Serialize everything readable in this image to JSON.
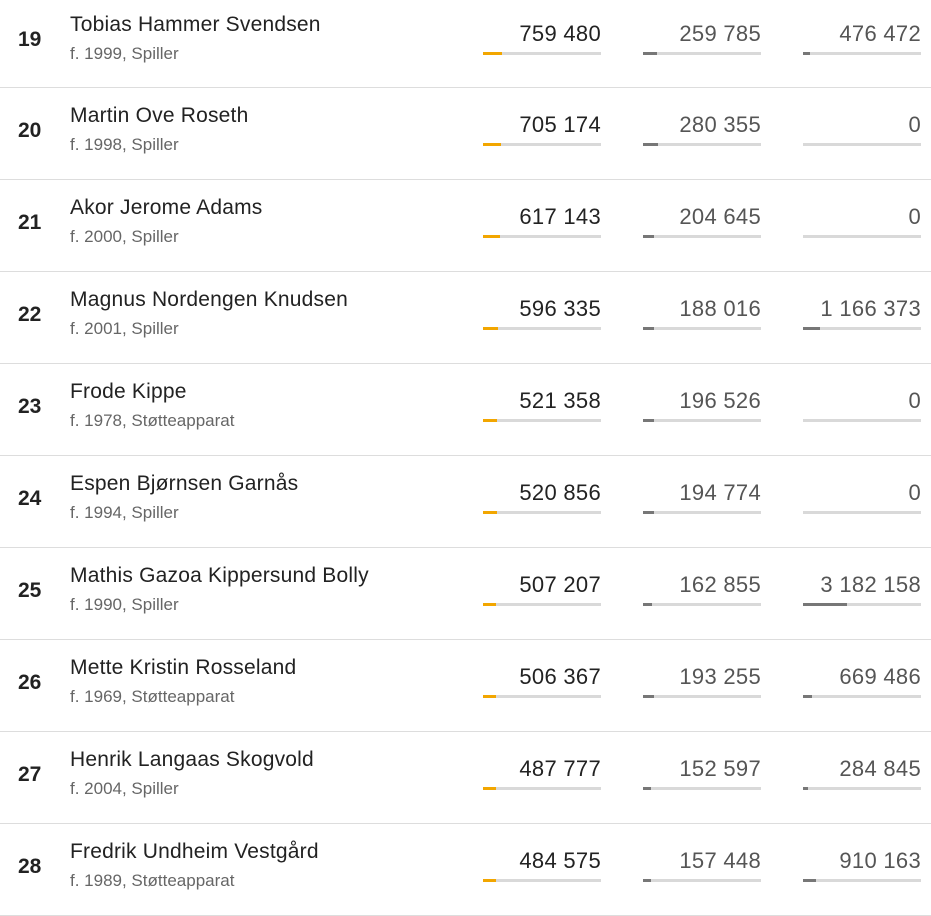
{
  "colors": {
    "accent": "#f2a600",
    "secondary_bar": "#777777",
    "track": "#d9d9d9"
  },
  "rows": [
    {
      "rank": "19",
      "name": "Tobias Hammer Svendsen",
      "sub": "f. 1999, Spiller",
      "v1": "759 480",
      "v2": "259 785",
      "v3": "476 472",
      "p1": 0.16,
      "p2": 0.12,
      "p3": 0.06
    },
    {
      "rank": "20",
      "name": "Martin Ove Roseth",
      "sub": "f. 1998, Spiller",
      "v1": "705 174",
      "v2": "280 355",
      "v3": "0",
      "p1": 0.15,
      "p2": 0.13,
      "p3": 0
    },
    {
      "rank": "21",
      "name": "Akor Jerome Adams",
      "sub": "f. 2000, Spiller",
      "v1": "617 143",
      "v2": "204 645",
      "v3": "0",
      "p1": 0.14,
      "p2": 0.09,
      "p3": 0
    },
    {
      "rank": "22",
      "name": "Magnus Nordengen Knudsen",
      "sub": "f. 2001, Spiller",
      "v1": "596 335",
      "v2": "188 016",
      "v3": "1 166 373",
      "p1": 0.13,
      "p2": 0.09,
      "p3": 0.14
    },
    {
      "rank": "23",
      "name": "Frode Kippe",
      "sub": "f. 1978, Støtteapparat",
      "v1": "521 358",
      "v2": "196 526",
      "v3": "0",
      "p1": 0.12,
      "p2": 0.09,
      "p3": 0
    },
    {
      "rank": "24",
      "name": "Espen Bjørnsen Garnås",
      "sub": "f. 1994, Spiller",
      "v1": "520 856",
      "v2": "194 774",
      "v3": "0",
      "p1": 0.12,
      "p2": 0.09,
      "p3": 0
    },
    {
      "rank": "25",
      "name": "Mathis Gazoa Kippersund Bolly",
      "sub": "f. 1990, Spiller",
      "v1": "507 207",
      "v2": "162 855",
      "v3": "3 182 158",
      "p1": 0.11,
      "p2": 0.08,
      "p3": 0.37
    },
    {
      "rank": "26",
      "name": "Mette Kristin Rosseland",
      "sub": "f. 1969, Støtteapparat",
      "v1": "506 367",
      "v2": "193 255",
      "v3": "669 486",
      "p1": 0.11,
      "p2": 0.09,
      "p3": 0.08
    },
    {
      "rank": "27",
      "name": "Henrik Langaas Skogvold",
      "sub": "f. 2004, Spiller",
      "v1": "487 777",
      "v2": "152 597",
      "v3": "284 845",
      "p1": 0.11,
      "p2": 0.07,
      "p3": 0.04
    },
    {
      "rank": "28",
      "name": "Fredrik Undheim Vestgård",
      "sub": "f. 1989, Støtteapparat",
      "v1": "484 575",
      "v2": "157 448",
      "v3": "910 163",
      "p1": 0.11,
      "p2": 0.07,
      "p3": 0.11
    }
  ]
}
